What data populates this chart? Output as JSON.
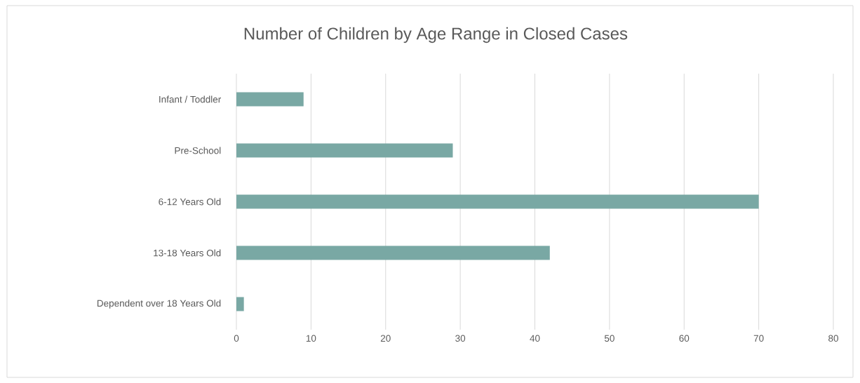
{
  "chart_data": {
    "type": "bar",
    "orientation": "horizontal",
    "title": "Number of Children by Age Range in Closed Cases",
    "categories": [
      "Infant / Toddler",
      "Pre-School",
      "6-12 Years Old",
      "13-18 Years Old",
      "Dependent over 18 Years Old"
    ],
    "values": [
      9,
      29,
      70,
      42,
      1
    ],
    "color": "#79a8a4",
    "xlim": [
      0,
      80
    ],
    "xticks": [
      0,
      10,
      20,
      30,
      40,
      50,
      60,
      70,
      80
    ],
    "grid": "x"
  }
}
